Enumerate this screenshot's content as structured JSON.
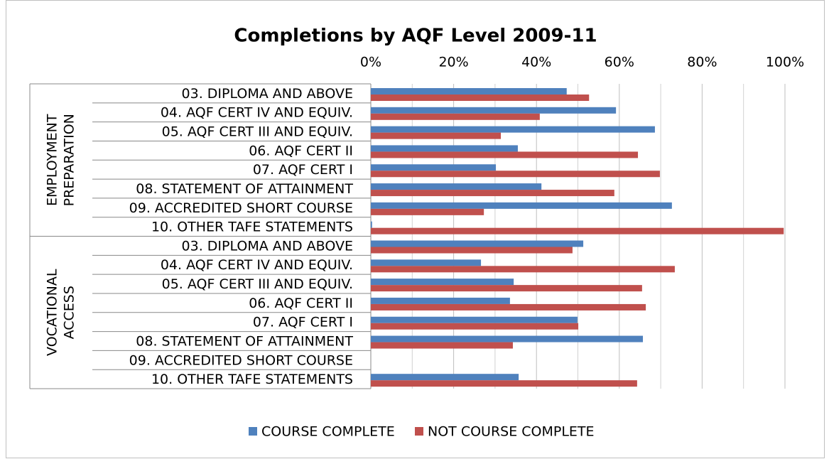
{
  "chart_data": {
    "type": "hbar",
    "title": "Completions by AQF Level 2009-11",
    "groups": [
      {
        "label": [
          "EMPLOYMENT",
          "PREPARATION"
        ],
        "categories": [
          "03. DIPLOMA AND ABOVE",
          "04. AQF CERT IV AND EQUIV.",
          "05. AQF CERT III AND EQUIV.",
          "06. AQF CERT II",
          "07. AQF CERT I",
          "08. STATEMENT OF ATTAINMENT",
          "09. ACCREDITED SHORT COURSE",
          "10. OTHER TAFE STATEMENTS"
        ]
      },
      {
        "label": [
          "VOCATIONAL",
          "ACCESS"
        ],
        "categories": [
          "03. DIPLOMA AND ABOVE",
          "04. AQF CERT IV AND EQUIV.",
          "05. AQF CERT III AND EQUIV.",
          "06. AQF CERT II",
          "07. AQF CERT I",
          "08. STATEMENT OF ATTAINMENT",
          "09. ACCREDITED SHORT COURSE",
          "10. OTHER TAFE STATEMENTS"
        ]
      }
    ],
    "series": [
      {
        "name": "COURSE COMPLETE",
        "color": "#4f81bd",
        "values": [
          47.3,
          59.2,
          68.6,
          35.5,
          30.2,
          41.2,
          72.7,
          0.3,
          51.3,
          26.6,
          34.5,
          33.6,
          49.9,
          65.7,
          null,
          35.7
        ]
      },
      {
        "name": "NOT COURSE COMPLETE",
        "color": "#c0504d",
        "values": [
          52.7,
          40.8,
          31.4,
          64.5,
          69.8,
          58.8,
          27.3,
          99.7,
          48.7,
          73.4,
          65.5,
          66.4,
          50.1,
          34.3,
          null,
          64.3
        ]
      }
    ],
    "xlim": [
      0,
      100
    ],
    "xticks": [
      {
        "value": 0,
        "label": "0%"
      },
      {
        "value": 20,
        "label": "20%"
      },
      {
        "value": 40,
        "label": "40%"
      },
      {
        "value": 60,
        "label": "60%"
      },
      {
        "value": 80,
        "label": "80%"
      },
      {
        "value": 100,
        "label": "100%"
      }
    ],
    "minor_xgrid": [
      10,
      30,
      50,
      70,
      90
    ],
    "grid": true,
    "legend": "bottom"
  }
}
